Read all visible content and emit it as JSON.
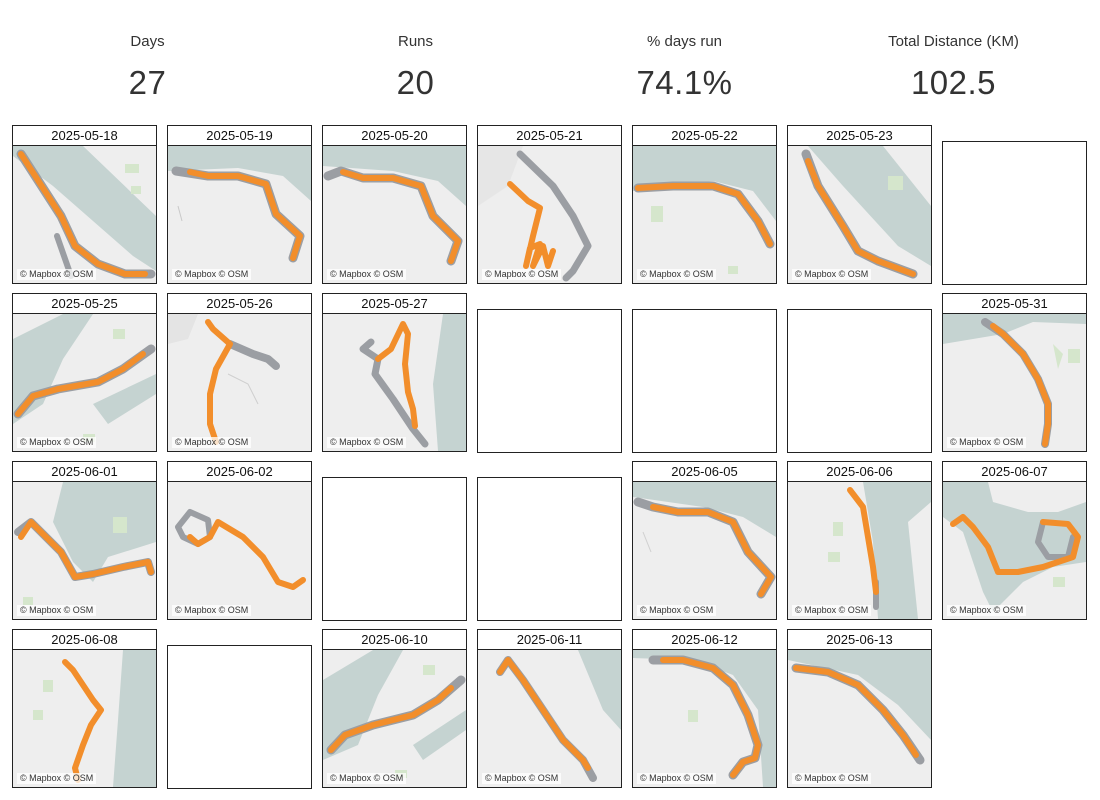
{
  "kpis": [
    {
      "label": "Days",
      "value": "27"
    },
    {
      "label": "Runs",
      "value": "20"
    },
    {
      "label": "% days run",
      "value": "74.1%"
    },
    {
      "label": "Total Distance (KM)",
      "value": "102.5"
    }
  ],
  "map_credit": "© Mapbox © OSM",
  "colors": {
    "route": "#f28e2b",
    "route_gray": "#9b9ea3",
    "water": "#c5d3d1",
    "land": "#eeeeee",
    "park": "#d5e6cc"
  },
  "tiles": [
    {
      "date": "2025-05-18"
    },
    {
      "date": "2025-05-19"
    },
    {
      "date": "2025-05-20"
    },
    {
      "date": "2025-05-21"
    },
    {
      "date": "2025-05-22"
    },
    {
      "date": "2025-05-23"
    },
    {
      "date": "2025-05-25"
    },
    {
      "date": "2025-05-26"
    },
    {
      "date": "2025-05-27"
    },
    {
      "date": "2025-05-31"
    },
    {
      "date": "2025-06-01"
    },
    {
      "date": "2025-06-02"
    },
    {
      "date": "2025-06-05"
    },
    {
      "date": "2025-06-06"
    },
    {
      "date": "2025-06-07"
    },
    {
      "date": "2025-06-08"
    },
    {
      "date": "2025-06-10"
    },
    {
      "date": "2025-06-11"
    },
    {
      "date": "2025-06-12"
    },
    {
      "date": "2025-06-13"
    }
  ]
}
